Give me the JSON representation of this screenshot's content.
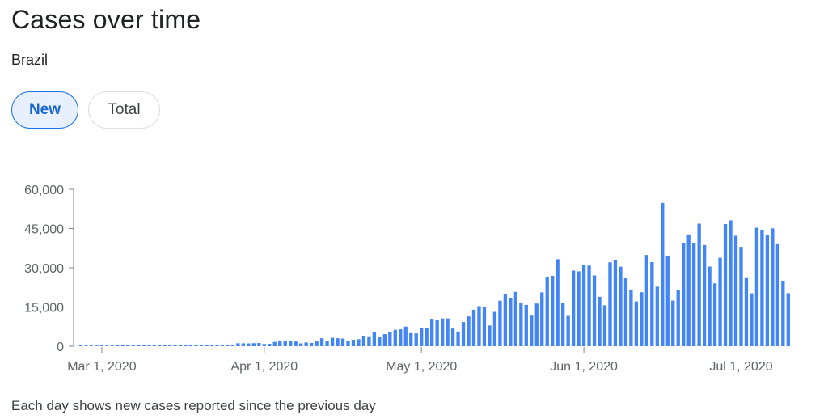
{
  "header": {
    "title": "Cases over time",
    "location": "Brazil"
  },
  "toggles": {
    "new_label": "New",
    "total_label": "Total",
    "selected": "New"
  },
  "footer": {
    "note": "Each day shows new cases reported since the previous day"
  },
  "colors": {
    "bar": "#4285f4",
    "axis": "#5f6368",
    "accent": "#1a73e8"
  },
  "chart_data": {
    "type": "bar",
    "title": "Cases over time",
    "subtitle": "Brazil",
    "start_date": "2020-02-26",
    "ylim": [
      0,
      60000
    ],
    "yticks": [
      0,
      15000,
      30000,
      45000,
      60000
    ],
    "ytick_labels": [
      "0",
      "15,000",
      "30,000",
      "45,000",
      "60,000"
    ],
    "xticks": [
      {
        "date": "2020-03-01",
        "label": "Mar 1, 2020"
      },
      {
        "date": "2020-04-01",
        "label": "Apr 1, 2020"
      },
      {
        "date": "2020-05-01",
        "label": "May 1, 2020"
      },
      {
        "date": "2020-06-01",
        "label": "Jun 1, 2020"
      },
      {
        "date": "2020-07-01",
        "label": "Jul 1, 2020"
      }
    ],
    "grid": false,
    "legend": "none",
    "values": [
      1,
      0,
      0,
      0,
      1,
      0,
      0,
      5,
      6,
      12,
      12,
      25,
      41,
      21,
      57,
      34,
      57,
      137,
      193,
      283,
      224,
      418,
      345,
      310,
      232,
      482,
      502,
      487,
      352,
      323,
      1138,
      1119,
      1074,
      1146,
      1222,
      852,
      926,
      1661,
      2210,
      2193,
      1930,
      1781,
      1089,
      1442,
      1261,
      1832,
      3058,
      2105,
      3257,
      3058,
      2917,
      1927,
      2498,
      2678,
      3735,
      3503,
      5514,
      3379,
      4613,
      5385,
      6276,
      6450,
      7502,
      5015,
      4898,
      6935,
      6832,
      10503,
      10222,
      10611,
      10611,
      6760,
      5632,
      9258,
      11385,
      13944,
      15305,
      14919,
      7938,
      13140,
      17408,
      19951,
      18508,
      20803,
      16508,
      15813,
      11687,
      16324,
      20599,
      26417,
      26928,
      33274,
      16409,
      11598,
      28936,
      28633,
      30925,
      30830,
      27075,
      18912,
      15654,
      32091,
      32913,
      30412,
      25982,
      21704,
      17110,
      20647,
      34918,
      32188,
      22765,
      54771,
      34666,
      17459,
      21432,
      39436,
      42725,
      39483,
      46860,
      38693,
      30476,
      24052,
      33846,
      46712,
      48105,
      42223,
      37997,
      26051,
      20229,
      45305,
      44571,
      42619,
      45048,
      39023,
      24831,
      20286
    ]
  }
}
